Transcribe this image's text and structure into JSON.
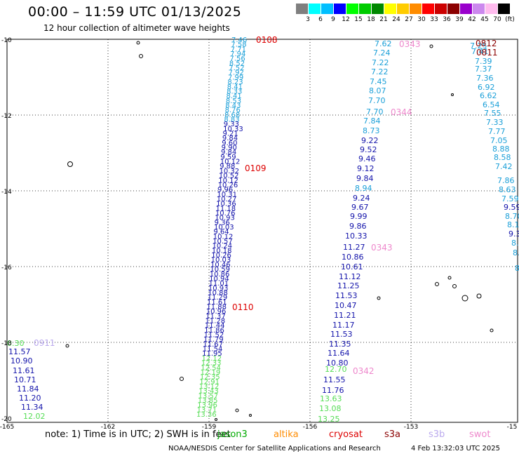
{
  "title": "00:00 – 11:59 UTC 01/13/2025",
  "subtitle": "12 hour collection of altimeter wave heights",
  "legend": {
    "unit": "(ft)",
    "bins": [
      {
        "label": "3",
        "color": "#7f7f7f"
      },
      {
        "label": "6",
        "color": "#00ffff"
      },
      {
        "label": "9",
        "color": "#00bfff"
      },
      {
        "label": "12",
        "color": "#0000ff"
      },
      {
        "label": "15",
        "color": "#00ff00"
      },
      {
        "label": "18",
        "color": "#00cc00"
      },
      {
        "label": "21",
        "color": "#008800"
      },
      {
        "label": "24",
        "color": "#ffff00"
      },
      {
        "label": "27",
        "color": "#ffcc00"
      },
      {
        "label": "30",
        "color": "#ff8c00"
      },
      {
        "label": "33",
        "color": "#ff0000"
      },
      {
        "label": "36",
        "color": "#cc0000"
      },
      {
        "label": "39",
        "color": "#8b0000"
      },
      {
        "label": "42",
        "color": "#9900cc"
      },
      {
        "label": "45",
        "color": "#cc88ee"
      },
      {
        "label": "70",
        "color": "#ffbbee"
      },
      {
        "label": "",
        "color": "#000000"
      }
    ]
  },
  "axes": {
    "lon_ticks": [
      "-165",
      "-162",
      "-159",
      "-156",
      "-153",
      "-15"
    ],
    "lat_ticks": [
      "-10",
      "-12",
      "-14",
      "-16",
      "-18",
      "-20"
    ]
  },
  "passes": [
    {
      "label": "0108",
      "color": "#dd0000"
    },
    {
      "label": "0109",
      "color": "#dd0000"
    },
    {
      "label": "0110",
      "color": "#dd0000"
    },
    {
      "label": "0343",
      "color": "#ee88cc"
    },
    {
      "label": "0344",
      "color": "#ee88cc"
    },
    {
      "label": "0343",
      "color": "#ee88cc"
    },
    {
      "label": "0342",
      "color": "#ee88cc"
    },
    {
      "label": "0812",
      "color": "#8b0000"
    },
    {
      "label": "0811",
      "color": "#8b0000"
    },
    {
      "label": "0911",
      "color": "#bbaaee"
    }
  ],
  "track_a": [
    "7.62",
    "7.24",
    "7.22",
    "7.22",
    "7.45",
    "8.07",
    "7.70",
    "7.70",
    "7.84",
    "8.73",
    "9.22",
    "9.52",
    "9.46",
    "9.12",
    "9.84",
    "8.94",
    "9.24",
    "9.67",
    "9.99",
    "9.86",
    "10.33",
    "11.27",
    "10.86",
    "10.61",
    "11.12",
    "11.25",
    "11.53",
    "10.47",
    "11.21",
    "11.17",
    "11.53",
    "11.35",
    "11.64",
    "10.80",
    "12.70",
    "11.55",
    "11.76",
    "13.63",
    "13.08",
    "13.25"
  ],
  "track_b": [
    "7.25",
    "7.41",
    "7.39",
    "7.37",
    "7.36",
    "6.92",
    "6.62",
    "6.54",
    "7.55",
    "7.33",
    "7.77",
    "7.05",
    "8.88",
    "8.58",
    "7.42",
    "7.86",
    "8.63",
    "7.59",
    "9.59",
    "8.70",
    "8.1",
    "9.3",
    "8.",
    "8.",
    "8"
  ],
  "track_c": [
    "0.30",
    "11.57",
    "10.90",
    "11.61",
    "10.71",
    "11.84",
    "11.20",
    "11.34",
    "12.02"
  ],
  "track_d": [
    "7.46",
    "7.58",
    "7.71",
    "7.94",
    "7.56",
    "8.52",
    "7.52",
    "7.92",
    "7.99",
    "8.23",
    "8.41",
    "8.33",
    "8.41",
    "8.53",
    "8.43",
    "8.76",
    "8.68",
    "8.83",
    "9.33",
    "10.33",
    "9.21",
    "9.84",
    "9.60",
    "9.90",
    "9.84",
    "9.59",
    "10.12",
    "9.88",
    "10.32",
    "10.52",
    "10.12",
    "10.26",
    "9.96",
    "10.31",
    "10.27",
    "10.36",
    "11.18",
    "10.76",
    "10.93",
    "9.36",
    "10.03",
    "9.64",
    "10.12",
    "10.57",
    "10.24",
    "10.18",
    "10.26",
    "10.03",
    "10.46",
    "10.59",
    "10.86",
    "10.94",
    "11.01",
    "10.93",
    "10.88",
    "11.29",
    "11.61",
    "11.88",
    "10.96",
    "11.37",
    "11.28",
    "11.44",
    "11.86",
    "11.52",
    "11.79",
    "11.67",
    "11.54",
    "11.95",
    "12.12",
    "12.33",
    "12.54",
    "12.19",
    "12.35",
    "12.91",
    "13.12",
    "13.43",
    "13.57",
    "13.85",
    "13.96",
    "13.71",
    "13.36"
  ],
  "note": "note:  1)  Time is in UTC;  2)  SWH is in feet",
  "satellites": [
    {
      "name": "jason3",
      "color": "#00aa00"
    },
    {
      "name": "altika",
      "color": "#ff8c00"
    },
    {
      "name": "cryosat",
      "color": "#dd0000"
    },
    {
      "name": "s3a",
      "color": "#8b0000"
    },
    {
      "name": "s3b",
      "color": "#bbaaee"
    },
    {
      "name": "swot",
      "color": "#ee88cc"
    }
  ],
  "footer": "NOAA/NESDIS Center for Satellite Applications and Research",
  "footer_date": "4 Feb 13:32:03 UTC 2025"
}
